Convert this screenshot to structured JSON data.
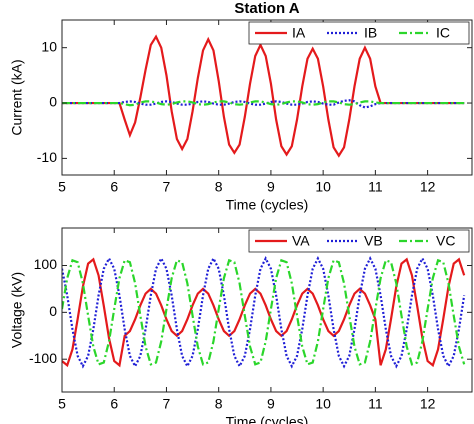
{
  "chart_data": [
    {
      "type": "line",
      "title": "Station A",
      "xlabel": "Time (cycles)",
      "ylabel": "Current (kA)",
      "x": [
        5.0,
        5.1,
        5.2,
        5.3,
        5.4,
        5.5,
        5.6,
        5.7,
        5.8,
        5.9,
        6.0,
        6.1,
        6.2,
        6.3,
        6.4,
        6.5,
        6.6,
        6.7,
        6.8,
        6.9,
        7.0,
        7.1,
        7.2,
        7.3,
        7.4,
        7.5,
        7.6,
        7.7,
        7.8,
        7.9,
        8.0,
        8.1,
        8.2,
        8.3,
        8.4,
        8.5,
        8.6,
        8.7,
        8.8,
        8.9,
        9.0,
        9.1,
        9.2,
        9.3,
        9.4,
        9.5,
        9.6,
        9.7,
        9.8,
        9.9,
        10.0,
        10.1,
        10.2,
        10.3,
        10.4,
        10.5,
        10.6,
        10.7,
        10.8,
        10.9,
        11.0,
        11.1,
        11.2,
        11.3,
        11.4,
        11.5,
        11.6,
        11.7,
        11.8,
        11.9,
        12.0,
        12.1,
        12.2,
        12.3,
        12.4,
        12.5,
        12.6,
        12.7
      ],
      "series": [
        {
          "name": "IA",
          "color": "#e41a1c",
          "dash": "solid",
          "values": [
            0,
            0,
            0,
            0,
            0,
            0,
            0,
            0,
            0,
            0,
            0,
            0,
            -3,
            -5.8,
            -3.5,
            1,
            6,
            10.5,
            12,
            10,
            5,
            -1.5,
            -6.5,
            -8.3,
            -6.5,
            -1.5,
            4.5,
            9.5,
            11.5,
            9.5,
            4,
            -2.5,
            -7.5,
            -9,
            -7.5,
            -2.5,
            3.5,
            8.5,
            10.5,
            8.5,
            3.5,
            -3,
            -7.8,
            -9.3,
            -7.8,
            -3,
            3,
            8,
            9.8,
            8,
            3,
            -3,
            -8,
            -9.5,
            -8,
            -3,
            3,
            8,
            10,
            8,
            3,
            0,
            0,
            0,
            0,
            0,
            0,
            0,
            0,
            0,
            0,
            0,
            0,
            0,
            0,
            0,
            0,
            0
          ]
        },
        {
          "name": "IB",
          "color": "#1f1fd6",
          "dash": "dotted",
          "values": [
            0,
            0,
            0,
            0,
            0,
            0,
            0,
            0,
            0,
            0,
            0,
            0,
            0.2,
            0.3,
            0.2,
            -0.1,
            -0.3,
            -0.3,
            -0.1,
            0.2,
            0.3,
            0.2,
            -0.1,
            -0.3,
            -0.3,
            -0.1,
            0.2,
            0.3,
            0.2,
            -0.1,
            -0.3,
            -0.3,
            -0.1,
            0.2,
            0.3,
            0.2,
            -0.1,
            -0.3,
            -0.3,
            -0.1,
            0.2,
            0.3,
            0.2,
            -0.1,
            -0.3,
            -0.3,
            -0.1,
            0.2,
            0.3,
            0.2,
            -0.1,
            -0.3,
            -0.3,
            0.1,
            0.4,
            0.5,
            0.3,
            -0.4,
            -0.8,
            -0.6,
            -0.2,
            0,
            0,
            0,
            0,
            0,
            0,
            0,
            0,
            0,
            0,
            0,
            0,
            0,
            0,
            0,
            0,
            0
          ]
        },
        {
          "name": "IC",
          "color": "#2bd62b",
          "dash": "dashdot",
          "values": [
            0,
            0,
            0,
            0,
            0,
            0,
            0,
            0,
            0,
            0,
            0,
            0,
            -0.2,
            -0.4,
            -0.3,
            0.1,
            0.3,
            0.3,
            0.1,
            -0.2,
            -0.3,
            -0.2,
            0.1,
            0.3,
            0.3,
            0.1,
            -0.2,
            -0.3,
            -0.2,
            0.1,
            0.3,
            0.3,
            0.1,
            -0.2,
            -0.3,
            -0.2,
            0.1,
            0.3,
            0.3,
            0.1,
            -0.2,
            -0.3,
            -0.2,
            0.1,
            0.3,
            0.3,
            0.1,
            -0.2,
            -0.3,
            -0.2,
            0.1,
            0.3,
            0.3,
            0.1,
            -0.2,
            -0.3,
            -0.2,
            0.1,
            0.3,
            0.3,
            0.1,
            0,
            0,
            0,
            0,
            0,
            0,
            0,
            0,
            0,
            0,
            0,
            0,
            0,
            0,
            0,
            0,
            0
          ]
        }
      ],
      "xlim": [
        5,
        12.85
      ],
      "xticks": [
        5,
        6,
        7,
        8,
        9,
        10,
        11,
        12
      ],
      "ylim": [
        -13,
        15
      ],
      "yticks": [
        -10,
        0,
        10
      ],
      "legend": "top-right"
    },
    {
      "type": "line",
      "xlabel": "Time (cycles)",
      "ylabel": "Voltage (kV)",
      "x": [
        5.0,
        5.1,
        5.2,
        5.3,
        5.4,
        5.5,
        5.6,
        5.7,
        5.8,
        5.9,
        6.0,
        6.1,
        6.2,
        6.3,
        6.4,
        6.5,
        6.6,
        6.7,
        6.8,
        6.9,
        7.0,
        7.1,
        7.2,
        7.3,
        7.4,
        7.5,
        7.6,
        7.7,
        7.8,
        7.9,
        8.0,
        8.1,
        8.2,
        8.3,
        8.4,
        8.5,
        8.6,
        8.7,
        8.8,
        8.9,
        9.0,
        9.1,
        9.2,
        9.3,
        9.4,
        9.5,
        9.6,
        9.7,
        9.8,
        9.9,
        10.0,
        10.1,
        10.2,
        10.3,
        10.4,
        10.5,
        10.6,
        10.7,
        10.8,
        10.9,
        11.0,
        11.1,
        11.2,
        11.3,
        11.4,
        11.5,
        11.6,
        11.7,
        11.8,
        11.9,
        12.0,
        12.1,
        12.2,
        12.3,
        12.4,
        12.5,
        12.6,
        12.7
      ],
      "series": [
        {
          "name": "VA",
          "color": "#e41a1c",
          "dash": "solid",
          "values": [
            -104,
            -113,
            -79,
            -14,
            55,
            104,
            113,
            79,
            14,
            -55,
            -104,
            -113,
            -50,
            -40,
            -15,
            15,
            40,
            50,
            40,
            15,
            -15,
            -40,
            -50,
            -40,
            -15,
            15,
            40,
            50,
            40,
            15,
            -15,
            -40,
            -50,
            -40,
            -15,
            15,
            40,
            50,
            40,
            15,
            -15,
            -40,
            -50,
            -40,
            -15,
            15,
            40,
            50,
            40,
            15,
            -15,
            -40,
            -50,
            -40,
            -15,
            15,
            40,
            50,
            40,
            15,
            -15,
            -113,
            -79,
            -14,
            55,
            104,
            113,
            79,
            14,
            -55,
            -104,
            -113,
            -79,
            -14,
            55,
            104,
            113,
            79
          ]
        },
        {
          "name": "VB",
          "color": "#1f1fd6",
          "dash": "dotted",
          "values": [
            93,
            36,
            -36,
            -93,
            -115,
            -93,
            -36,
            36,
            93,
            115,
            93,
            36,
            -36,
            -93,
            -115,
            -93,
            -36,
            36,
            93,
            115,
            93,
            36,
            -36,
            -93,
            -115,
            -93,
            -36,
            36,
            93,
            115,
            93,
            36,
            -36,
            -93,
            -115,
            -93,
            -36,
            36,
            93,
            115,
            93,
            36,
            -36,
            -93,
            -115,
            -93,
            -36,
            36,
            93,
            115,
            93,
            36,
            -36,
            -93,
            -115,
            -93,
            -36,
            36,
            93,
            115,
            93,
            36,
            -36,
            -93,
            -115,
            -93,
            -36,
            36,
            93,
            115,
            93,
            36,
            -36,
            -93,
            -115,
            -93,
            -36,
            36
          ]
        },
        {
          "name": "VC",
          "color": "#2bd62b",
          "dash": "dashdot",
          "values": [
            7,
            73,
            111,
            107,
            62,
            -7,
            -73,
            -111,
            -107,
            -62,
            7,
            73,
            111,
            107,
            62,
            -7,
            -73,
            -111,
            -107,
            -62,
            7,
            73,
            111,
            107,
            62,
            -7,
            -73,
            -111,
            -107,
            -62,
            7,
            73,
            111,
            107,
            62,
            -7,
            -73,
            -111,
            -107,
            -62,
            7,
            73,
            111,
            107,
            62,
            -7,
            -73,
            -111,
            -107,
            -62,
            7,
            73,
            111,
            107,
            62,
            -7,
            -73,
            -111,
            -107,
            -62,
            7,
            73,
            111,
            107,
            62,
            -7,
            -73,
            -111,
            -107,
            -62,
            7,
            73,
            111,
            107,
            62,
            -7,
            -73,
            -111
          ]
        }
      ],
      "xlim": [
        5,
        12.85
      ],
      "xticks": [
        5,
        6,
        7,
        8,
        9,
        10,
        11,
        12
      ],
      "ylim": [
        -170,
        180
      ],
      "yticks": [
        -100,
        0,
        100
      ],
      "legend": "top-right"
    }
  ]
}
